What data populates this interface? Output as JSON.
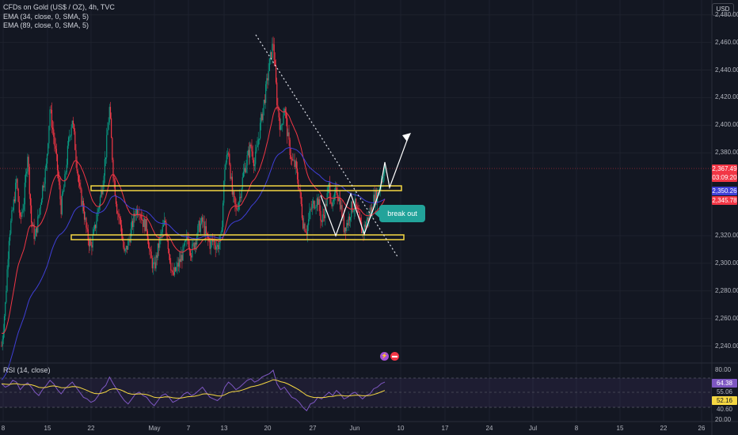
{
  "legend": {
    "title": "CFDs on Gold (US$ / OZ), 4h, TVC",
    "ema34": "EMA (34, close, 0, SMA, 5)",
    "ema89": "EMA (89, close, 0, SMA, 5)",
    "rsi": "RSI (14, close)"
  },
  "currency_button": "USD",
  "price_axis": [
    "2,480.00",
    "2,460.00",
    "2,440.00",
    "2,420.00",
    "2,400.00",
    "2,380.00",
    "2,320.00",
    "2,300.00",
    "2,280.00",
    "2,260.00",
    "2,240.00"
  ],
  "price_tags": {
    "current": "2,367.49",
    "countdown": "03:09:20",
    "ema34": "2,350.26",
    "ema89": "2,345.78"
  },
  "rsi_axis": {
    "top": "80.00",
    "bottom": "20.00"
  },
  "rsi_tags": {
    "rsi": "64.38",
    "level_upper": "55.06",
    "ma": "52.16",
    "level_lower": "40.60"
  },
  "time_axis": [
    "8",
    "15",
    "22",
    "May",
    "7",
    "13",
    "20",
    "27",
    "Jun",
    "10",
    "17",
    "24",
    "Jul",
    "8",
    "15",
    "22",
    "26"
  ],
  "callout_text": "break out",
  "icons": {
    "bolt": "lightning-icon",
    "calendar": "calendar-icon"
  },
  "colors": {
    "up": "#089981",
    "down": "#f23645",
    "ema34": "#f23645",
    "ema89": "#3f3fd6",
    "zone": "#f5d742",
    "rsi": "#7e57c2",
    "rsi_ma": "#f5d742"
  },
  "chart_data": {
    "type": "candlestick",
    "price_range": [
      2230,
      2485
    ],
    "candles_close": [
      2240,
      2270,
      2320,
      2338,
      2360,
      2330,
      2345,
      2380,
      2330,
      2318,
      2335,
      2355,
      2370,
      2412,
      2392,
      2368,
      2340,
      2360,
      2388,
      2405,
      2378,
      2352,
      2340,
      2320,
      2312,
      2324,
      2340,
      2355,
      2380,
      2412,
      2366,
      2340,
      2328,
      2306,
      2314,
      2326,
      2338,
      2340,
      2330,
      2326,
      2304,
      2296,
      2310,
      2322,
      2330,
      2308,
      2290,
      2296,
      2302,
      2310,
      2318,
      2308,
      2316,
      2326,
      2330,
      2320,
      2314,
      2316,
      2312,
      2318,
      2370,
      2382,
      2350,
      2338,
      2348,
      2365,
      2376,
      2385,
      2372,
      2390,
      2408,
      2425,
      2445,
      2460,
      2418,
      2396,
      2414,
      2390,
      2374,
      2370,
      2354,
      2330,
      2324,
      2338,
      2344,
      2346,
      2330,
      2340,
      2356,
      2340,
      2354,
      2344,
      2326,
      2330,
      2340,
      2342,
      2332,
      2322,
      2330,
      2336,
      2346,
      2350,
      2360,
      2367
    ],
    "ema34_end": 2350.26,
    "ema89_end": 2345.78,
    "current_price": 2367.49,
    "resistance_zone": 2352,
    "support_zone": 2317,
    "rsi_values": [
      62,
      58,
      60,
      66,
      64,
      55,
      60,
      63,
      58,
      52,
      48,
      55,
      60,
      66,
      62,
      55,
      50,
      56,
      60,
      64,
      58,
      52,
      46,
      44,
      40,
      42,
      48,
      56,
      60,
      70,
      62,
      55,
      48,
      42,
      38,
      44,
      50,
      52,
      48,
      46,
      40,
      36,
      42,
      48,
      50,
      46,
      40,
      42,
      45,
      50,
      52,
      48,
      50,
      54,
      58,
      52,
      46,
      44,
      42,
      46,
      58,
      64,
      60,
      55,
      58,
      62,
      66,
      68,
      64,
      66,
      70,
      72,
      74,
      78,
      62,
      55,
      58,
      52,
      46,
      44,
      40,
      34,
      30,
      38,
      40,
      46,
      44,
      48,
      52,
      48,
      54,
      50,
      44,
      46,
      50,
      52,
      48,
      44,
      48,
      50,
      56,
      58,
      62,
      64
    ],
    "rsi_range": [
      20,
      80
    ],
    "rsi_levels": [
      55.06,
      40.6
    ]
  }
}
